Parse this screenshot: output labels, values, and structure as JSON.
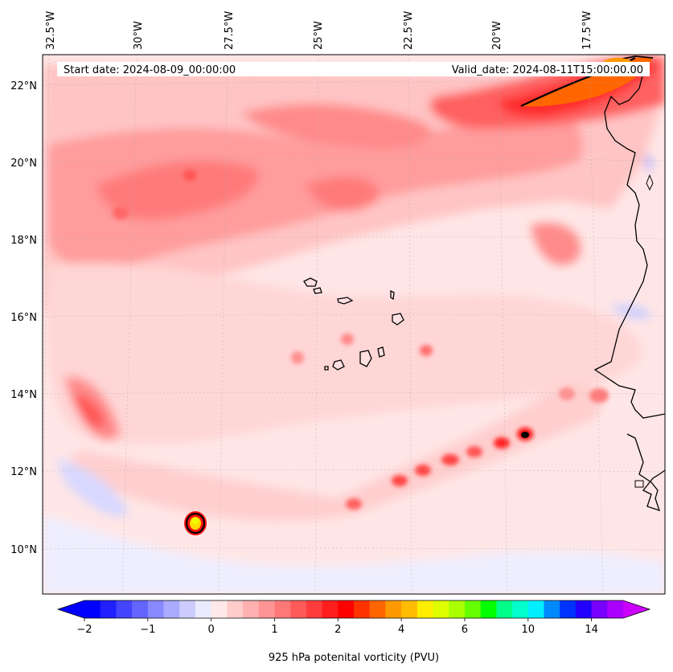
{
  "header": {
    "start_date": "Start date: 2024-08-09_00:00:00",
    "valid_date": "Valid_date: 2024-08-11T15:00:00.00"
  },
  "axes": {
    "lon_ticks": [
      "32.5°W",
      "30°W",
      "27.5°W",
      "25°W",
      "22.5°W",
      "20°W",
      "17.5°W"
    ],
    "lat_ticks": [
      "22°N",
      "20°N",
      "18°N",
      "16°N",
      "14°N",
      "12°N",
      "10°N"
    ]
  },
  "colorbar": {
    "label": "925 hPa potenital vorticity (PVU)",
    "tick_labels": [
      "−2",
      "−1",
      "0",
      "1",
      "2",
      "4",
      "6",
      "10",
      "14"
    ],
    "tick_values": [
      -2,
      -1,
      0,
      1,
      2,
      4,
      6,
      10,
      14
    ],
    "colors": [
      "#0000ff",
      "#2020ff",
      "#4444ff",
      "#6464ff",
      "#8888ff",
      "#aaaaff",
      "#ccccff",
      "#ebebff",
      "#ffe8e8",
      "#ffcccc",
      "#ffb0b0",
      "#ff9494",
      "#ff7878",
      "#ff5a5a",
      "#ff3c3c",
      "#ff1e1e",
      "#ff0000",
      "#ff3300",
      "#ff6600",
      "#ff9900",
      "#ffbb00",
      "#ffee00",
      "#ddff00",
      "#aaff00",
      "#66ff00",
      "#00ff00",
      "#00ff88",
      "#00ffcc",
      "#00eeff",
      "#0088ff",
      "#0033ff",
      "#2200ff",
      "#7700ff",
      "#aa00ff"
    ],
    "under_color": "#0000ff",
    "over_color": "#cc00ff"
  },
  "map": {
    "background_color": "#ffe6e6",
    "coastline_color": "#000000"
  }
}
